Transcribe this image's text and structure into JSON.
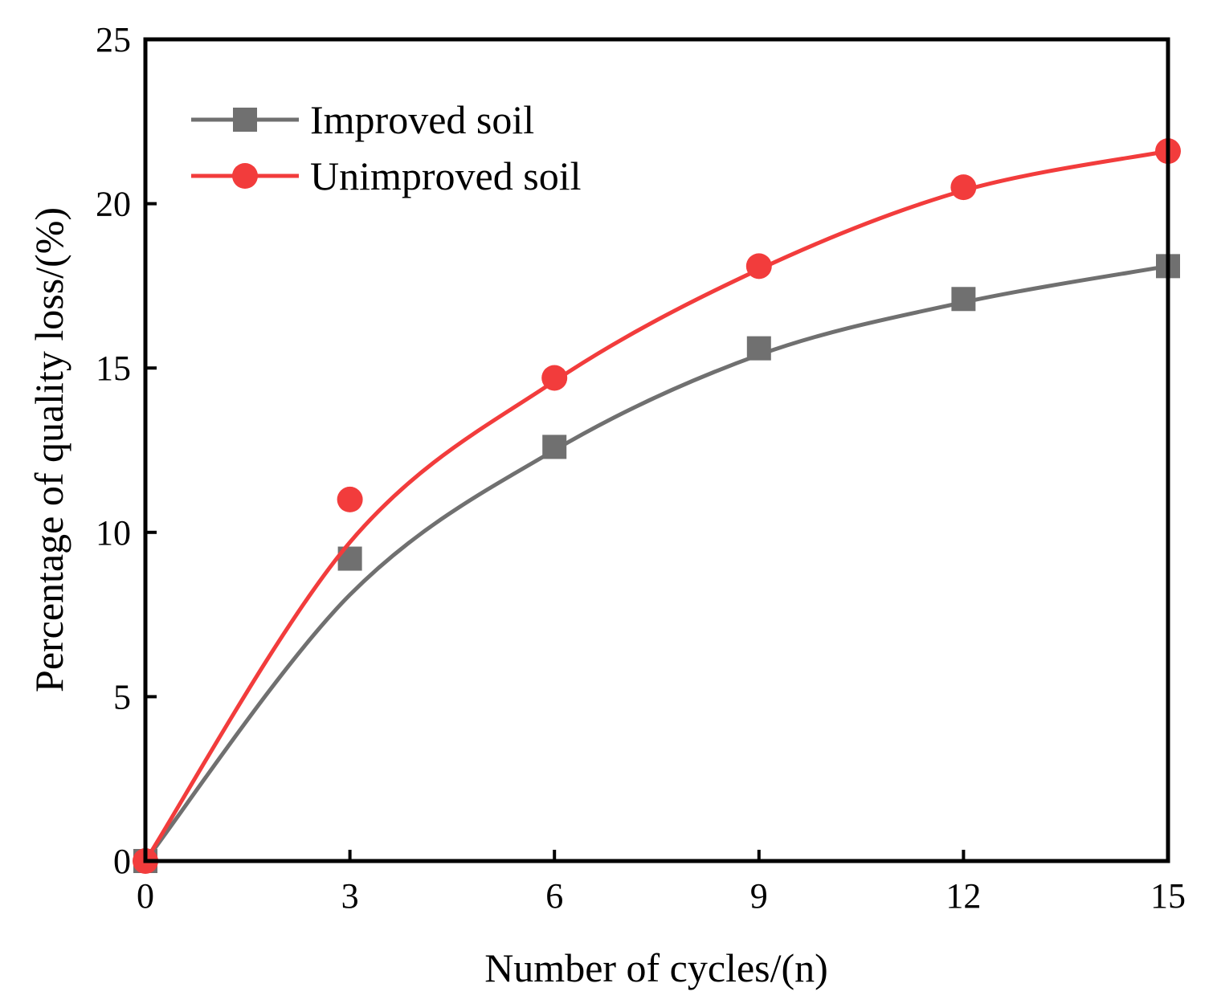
{
  "chart_data": {
    "type": "line",
    "xlabel": "Number of cycles/(n)",
    "ylabel": "Percentage of quality loss/(%)",
    "xlim": [
      0,
      15
    ],
    "ylim": [
      0,
      25
    ],
    "xticks": [
      0,
      3,
      6,
      9,
      12,
      15
    ],
    "yticks": [
      0,
      5,
      10,
      15,
      20,
      25
    ],
    "grid": false,
    "legend_position": "top-left",
    "series": [
      {
        "name": "Improved soil",
        "marker": "square",
        "color": "#707070",
        "x": [
          0,
          3,
          6,
          9,
          12,
          15
        ],
        "y": [
          0,
          9.2,
          12.6,
          15.6,
          17.1,
          18.1
        ],
        "fit": [
          0,
          8.1,
          12.5,
          15.4,
          17.0,
          18.1
        ]
      },
      {
        "name": "Unimproved soil",
        "marker": "circle",
        "color": "#f23c3c",
        "x": [
          0,
          3,
          6,
          9,
          12,
          15
        ],
        "y": [
          0,
          11.0,
          14.7,
          18.1,
          20.5,
          21.6
        ],
        "fit": [
          0,
          9.7,
          14.6,
          18.0,
          20.4,
          21.6
        ]
      }
    ]
  }
}
